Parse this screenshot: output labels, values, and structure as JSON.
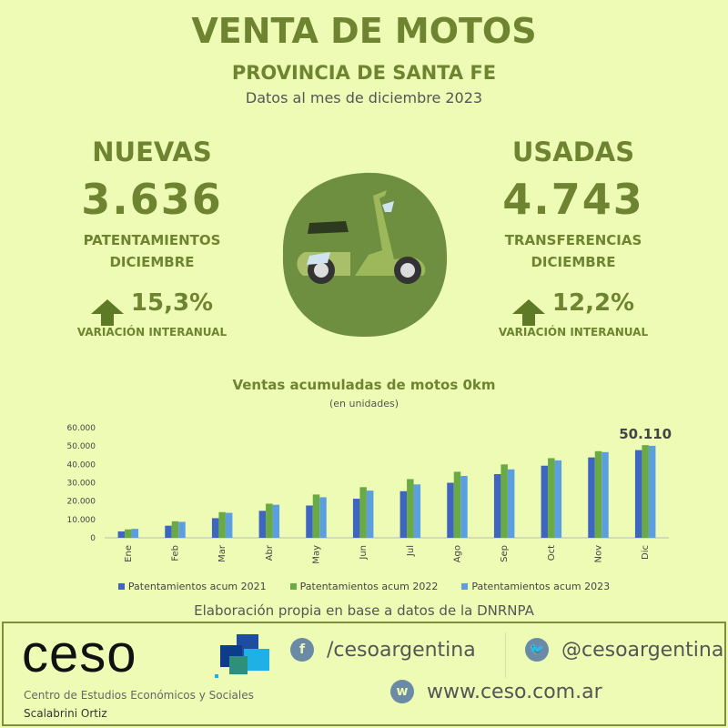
{
  "header": {
    "title": "VENTA DE MOTOS",
    "subtitle": "PROVINCIA DE SANTA FE",
    "date": "Datos al mes de diciembre 2023"
  },
  "nuevas": {
    "heading": "NUEVAS",
    "value": "3.636",
    "label1": "PATENTAMIENTOS",
    "label2": "DICIEMBRE",
    "variation": "15,3%",
    "variation_label": "VARIACIÓN INTERANUAL"
  },
  "usadas": {
    "heading": "USADAS",
    "value": "4.743",
    "label1": "TRANSFERENCIAS",
    "label2": "DICIEMBRE",
    "variation": "12,2%",
    "variation_label": "VARIACIÓN INTERANUAL"
  },
  "colors": {
    "s2021": "#3e66c0",
    "s2022": "#6aaa45",
    "s2023": "#5b9fe0"
  },
  "chart_data": {
    "type": "bar",
    "title": "Ventas acumuladas de motos 0km",
    "subtitle": "(en unidades)",
    "categories": [
      "Ene",
      "Feb",
      "Mar",
      "Abr",
      "May",
      "Jun",
      "Jul",
      "Ago",
      "Sep",
      "Oct",
      "Nov",
      "Dic"
    ],
    "yticks": [
      "0",
      "10.000",
      "20.000",
      "30.000",
      "40.000",
      "50.000",
      "60.000"
    ],
    "ylim": [
      0,
      60000
    ],
    "series": [
      {
        "name": "Patentamientos acum 2021",
        "values": [
          3500,
          6600,
          10700,
          14700,
          17600,
          21300,
          25400,
          30000,
          34700,
          39300,
          43800,
          47800
        ]
      },
      {
        "name": "Patentamientos acum 2022",
        "values": [
          4600,
          9000,
          14000,
          18600,
          23600,
          27600,
          32000,
          36000,
          40000,
          43400,
          47200,
          50500
        ]
      },
      {
        "name": "Patentamientos acum 2023",
        "values": [
          4900,
          8700,
          13600,
          18000,
          22100,
          25700,
          29100,
          33700,
          37300,
          42200,
          46700,
          50110
        ]
      }
    ],
    "annotation": "50.110",
    "legend": "bottom"
  },
  "source": "Elaboración propia en base a datos de la DNRNPA",
  "footer": {
    "logo": "ceso",
    "org1": "Centro de Estudios Económicos y Sociales",
    "org2": "Scalabrini Ortiz",
    "facebook": "/cesoargentina",
    "twitter": "@cesoargentina",
    "web": "www.ceso.com.ar",
    "fb_glyph": "f",
    "web_glyph": "w"
  }
}
